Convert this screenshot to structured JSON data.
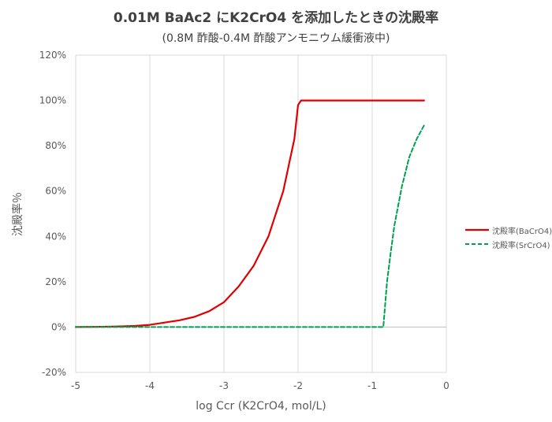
{
  "chart_data": {
    "type": "line",
    "title": "0.01M BaAc2 にK2CrO4 を添加したときの沈殿率",
    "subtitle": "(0.8M 酢酸-0.4M 酢酸アンモニウム緩衝液中)",
    "xlabel": "log Ccr (K2CrO4, mol/L)",
    "ylabel": "沈殿率％",
    "xlim": [
      -5,
      0
    ],
    "ylim": [
      -20,
      120
    ],
    "x_ticks": [
      -5,
      -4,
      -3,
      -2,
      -1,
      0
    ],
    "y_ticks": [
      -20,
      0,
      20,
      40,
      60,
      80,
      100,
      120
    ],
    "y_tick_labels": [
      "-20%",
      "0%",
      "20%",
      "40%",
      "60%",
      "80%",
      "100%",
      "120%"
    ],
    "grid": "vertical",
    "legend_position": "right",
    "series": [
      {
        "name": "沈殿率(BaCrO4)",
        "color": "#e00000",
        "dash": "solid",
        "points": [
          [
            -5.0,
            0
          ],
          [
            -4.5,
            0.2
          ],
          [
            -4.2,
            0.5
          ],
          [
            -4.0,
            1
          ],
          [
            -3.8,
            2
          ],
          [
            -3.6,
            3
          ],
          [
            -3.4,
            4.5
          ],
          [
            -3.2,
            7
          ],
          [
            -3.0,
            11
          ],
          [
            -2.8,
            18
          ],
          [
            -2.6,
            27
          ],
          [
            -2.4,
            40
          ],
          [
            -2.2,
            60
          ],
          [
            -2.05,
            83
          ],
          [
            -2.0,
            98
          ],
          [
            -1.96,
            100
          ],
          [
            -1.8,
            100
          ],
          [
            -1.5,
            100
          ],
          [
            -1.0,
            100
          ],
          [
            -0.6,
            100
          ],
          [
            -0.3,
            100
          ]
        ]
      },
      {
        "name": "沈殿率(SrCrO4)",
        "color": "#00a050",
        "dash": "dashed",
        "points": [
          [
            -5.0,
            0
          ],
          [
            -4.0,
            0
          ],
          [
            -3.0,
            0
          ],
          [
            -2.0,
            0
          ],
          [
            -1.2,
            0
          ],
          [
            -0.85,
            0
          ],
          [
            -0.8,
            20
          ],
          [
            -0.75,
            33
          ],
          [
            -0.7,
            45
          ],
          [
            -0.6,
            62
          ],
          [
            -0.5,
            75
          ],
          [
            -0.4,
            83
          ],
          [
            -0.3,
            89
          ]
        ]
      }
    ]
  }
}
